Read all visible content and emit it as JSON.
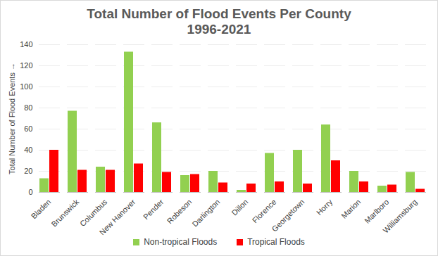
{
  "chart_data": {
    "type": "bar",
    "title": "Total Number of Flood Events Per County",
    "subtitle": "1996-2021",
    "ylabel": "Total Number of Flood Events",
    "categories": [
      "Bladen",
      "Brunswick",
      "Columbus",
      "New Hanover",
      "Pender",
      "Robeson",
      "Darlington",
      "Dillon",
      "Florence",
      "Georgetown",
      "Horry",
      "Marion",
      "Marlboro",
      "Williamsburg"
    ],
    "series": [
      {
        "name": "Non-tropical Floods",
        "color": "#92d050",
        "values": [
          13,
          77,
          24,
          133,
          66,
          16,
          20,
          2,
          37,
          40,
          64,
          20,
          6,
          19
        ]
      },
      {
        "name": "Tropical Floods",
        "color": "#ff0000",
        "values": [
          40,
          21,
          21,
          27,
          19,
          17,
          9,
          8,
          10,
          8,
          30,
          10,
          7,
          3
        ]
      }
    ],
    "ylim": [
      0,
      140
    ],
    "yticks": [
      0,
      20,
      40,
      60,
      80,
      100,
      120,
      140
    ],
    "grid": true,
    "legend": "bottom"
  }
}
